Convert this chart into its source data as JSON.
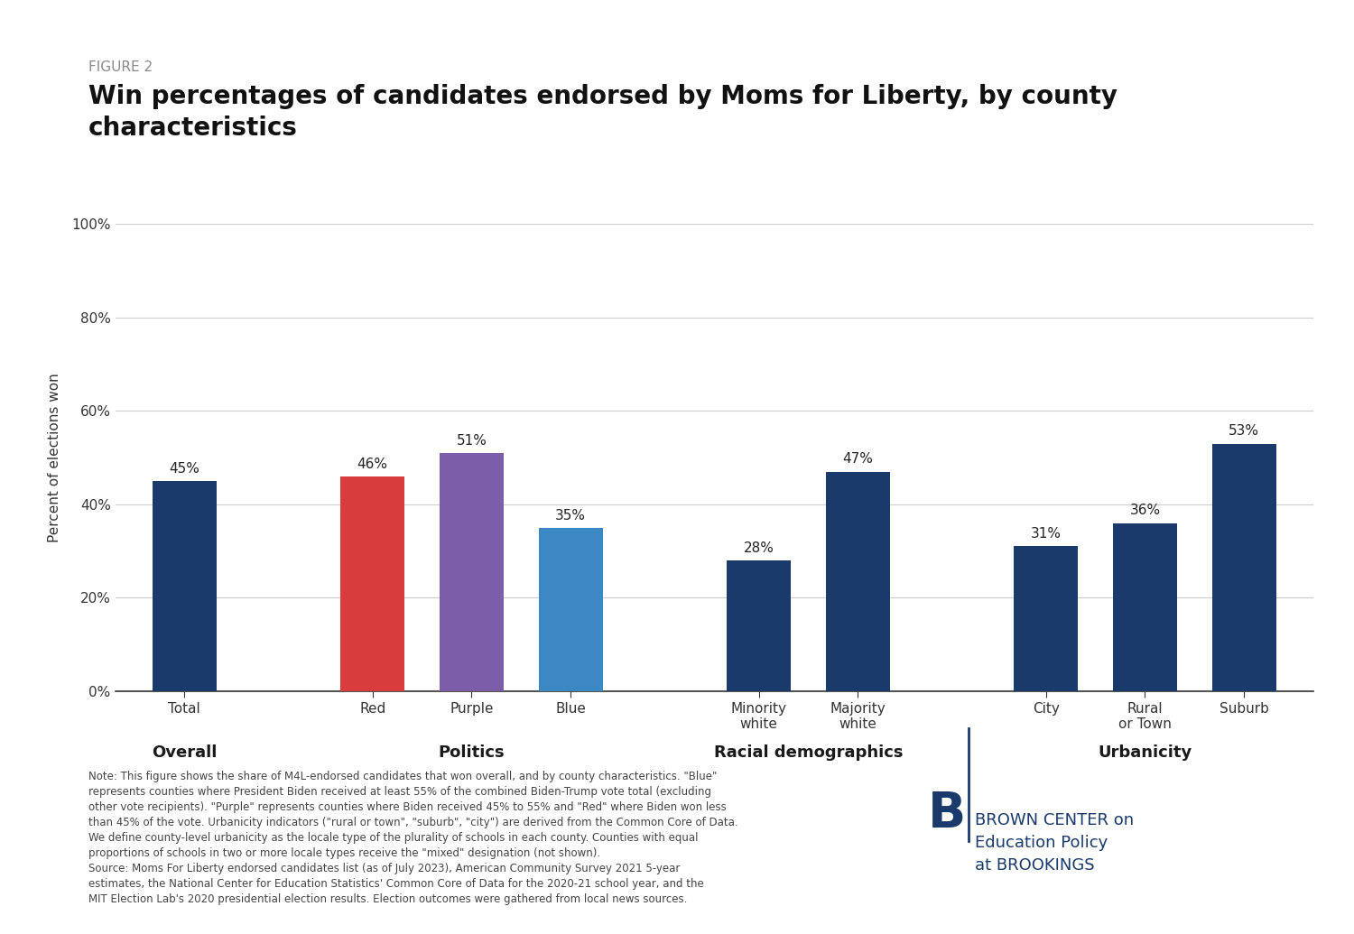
{
  "figure_label": "FIGURE 2",
  "title": "Win percentages of candidates endorsed by Moms for Liberty, by county\ncharacteristics",
  "ylabel": "Percent of elections won",
  "bars": [
    {
      "label": "Total",
      "value": 0.45,
      "color": "#1a3a6b",
      "group": "Overall",
      "group_label": "Overall"
    },
    {
      "label": "Red",
      "value": 0.46,
      "color": "#d93c3c",
      "group": "Politics",
      "group_label": "Politics"
    },
    {
      "label": "Purple",
      "value": 0.51,
      "color": "#7b5ea7",
      "group": "Politics",
      "group_label": "Politics"
    },
    {
      "label": "Blue",
      "value": 0.35,
      "color": "#3b88c3",
      "group": "Politics",
      "group_label": "Politics"
    },
    {
      "label": "Minority\nwhite",
      "value": 0.28,
      "color": "#1a3a6b",
      "group": "Racial demographics",
      "group_label": "Racial demographics"
    },
    {
      "label": "Majority\nwhite",
      "value": 0.47,
      "color": "#1a3a6b",
      "group": "Racial demographics",
      "group_label": "Racial demographics"
    },
    {
      "label": "City",
      "value": 0.31,
      "color": "#1a3a6b",
      "group": "Urbanicity",
      "group_label": "Urbanicity"
    },
    {
      "label": "Rural\nor Town",
      "value": 0.36,
      "color": "#1a3a6b",
      "group": "Urbanicity",
      "group_label": "Urbanicity"
    },
    {
      "label": "Suburb",
      "value": 0.53,
      "color": "#1a3a6b",
      "group": "Urbanicity",
      "group_label": "Urbanicity"
    }
  ],
  "group_labels": [
    {
      "group": "Overall",
      "label": "Overall",
      "bars": [
        0
      ]
    },
    {
      "group": "Politics",
      "label": "Politics",
      "bars": [
        1,
        2,
        3
      ]
    },
    {
      "group": "Racial demographics",
      "label": "Racial demographics",
      "bars": [
        4,
        5
      ]
    },
    {
      "group": "Urbanicity",
      "label": "Urbanicity",
      "bars": [
        6,
        7,
        8
      ]
    }
  ],
  "ylim": [
    0,
    1.0
  ],
  "yticks": [
    0,
    0.2,
    0.4,
    0.6,
    0.8,
    1.0
  ],
  "ytick_labels": [
    "0%",
    "20%",
    "40%",
    "60%",
    "80%",
    "100%"
  ],
  "bar_width": 0.65,
  "note_text": "Note: This figure shows the share of M4L-endorsed candidates that won overall, and by county characteristics. \"Blue\"\nrepresents counties where President Biden received at least 55% of the combined Biden-Trump vote total (excluding\nother vote recipients). \"Purple\" represents counties where Biden received 45% to 55% and \"Red\" where Biden won less\nthan 45% of the vote. Urbanicity indicators (\"rural or town\", \"suburb\", \"city\") are derived from the Common Core of Data.\nWe define county-level urbanicity as the locale type of the plurality of schools in each county. Counties with equal\nproportions of schools in two or more locale types receive the \"mixed\" designation (not shown).\nSource: Moms For Liberty endorsed candidates list (as of July 2023), American Community Survey 2021 5-year\nestimates, the National Center for Education Statistics' Common Core of Data for the 2020-21 school year, and the\nMIT Election Lab's 2020 presidential election results. Election outcomes were gathered from local news sources.",
  "background_color": "#ffffff",
  "grid_color": "#cccccc",
  "label_fontsize": 11,
  "title_fontsize": 20,
  "figure_label_fontsize": 11,
  "note_fontsize": 8.5,
  "value_label_fontsize": 11,
  "group_label_fontsize": 13
}
